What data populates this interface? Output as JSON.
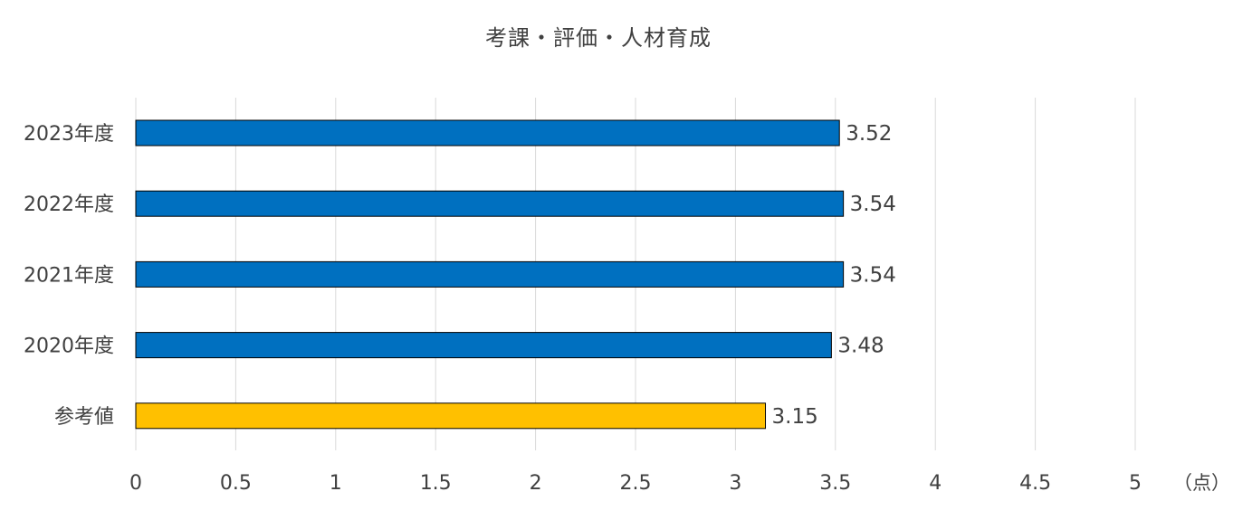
{
  "chart_data": {
    "type": "bar",
    "orientation": "horizontal",
    "title": "考課・評価・人材育成",
    "unit_label": "（点）",
    "categories": [
      "2023年度",
      "2022年度",
      "2021年度",
      "2020年度",
      "参考値"
    ],
    "values": [
      3.52,
      3.54,
      3.54,
      3.48,
      3.15
    ],
    "data_labels": [
      "3.52",
      "3.54",
      "3.54",
      "3.48",
      "3.15"
    ],
    "bar_colors": [
      "#0070C0",
      "#0070C0",
      "#0070C0",
      "#0070C0",
      "#FFC000"
    ],
    "xlim": [
      0,
      5
    ],
    "x_ticks": [
      0,
      0.5,
      1,
      1.5,
      2,
      2.5,
      3,
      3.5,
      4,
      4.5,
      5
    ],
    "x_tick_labels": [
      "0",
      "0.5",
      "1",
      "1.5",
      "2",
      "2.5",
      "3",
      "3.5",
      "4",
      "4.5",
      "5"
    ],
    "xlabel": "",
    "ylabel": "",
    "grid": true,
    "legend": false
  },
  "colors": {
    "text": "#404040",
    "grid": "#d9d9d9",
    "bar_outline": "#000000"
  }
}
